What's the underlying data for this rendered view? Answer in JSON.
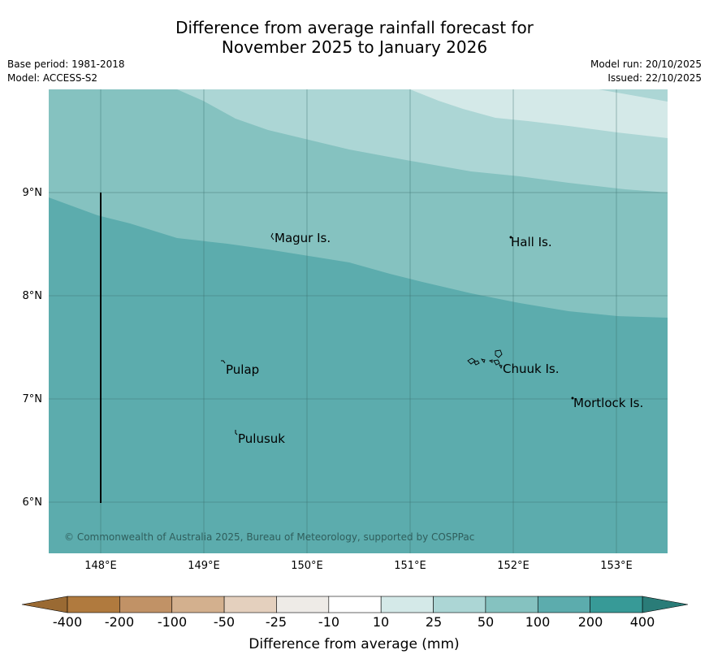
{
  "title": {
    "line1": "Difference from average rainfall forecast for",
    "line2": "November 2025 to January 2026"
  },
  "meta": {
    "base_period": "Base period: 1981-2018",
    "model": "Model: ACCESS-S2",
    "model_run": "Model run: 20/10/2025",
    "issued": "Issued: 22/10/2025"
  },
  "map": {
    "lon_labels": [
      "148°E",
      "149°E",
      "150°E",
      "151°E",
      "152°E",
      "153°E"
    ],
    "lat_labels": [
      "9°N",
      "8°N",
      "7°N",
      "6°N"
    ],
    "places": {
      "magur": "Magur Is.",
      "hall": "Hall Is.",
      "pulap": "Pulap",
      "chuuk": "Chuuk Is.",
      "mortlock": "Mortlock Is.",
      "pulusuk": "Pulusuk"
    },
    "copyright": "© Commonwealth of Australia 2025, Bureau of Meteorology, supported by COSPPac",
    "colors": {
      "band_10_25": "#d4e9e8",
      "band_25_50": "#acd6d5",
      "band_50_100": "#85c2c0",
      "band_100_200": "#5cacad"
    }
  },
  "colorbar": {
    "title": "Difference from average (mm)",
    "labels": [
      "-400",
      "-200",
      "-100",
      "-50",
      "-25",
      "-10",
      "10",
      "25",
      "50",
      "100",
      "200",
      "400"
    ],
    "colors": [
      "#b07a3e",
      "#c19266",
      "#d3b08e",
      "#e4d0be",
      "#eeebe7",
      "#ffffff",
      "#d4e9e8",
      "#acd6d5",
      "#85c2c0",
      "#5cacad",
      "#379a97"
    ],
    "low_extend_color": "#9a6a33",
    "high_extend_color": "#2a7c78"
  }
}
